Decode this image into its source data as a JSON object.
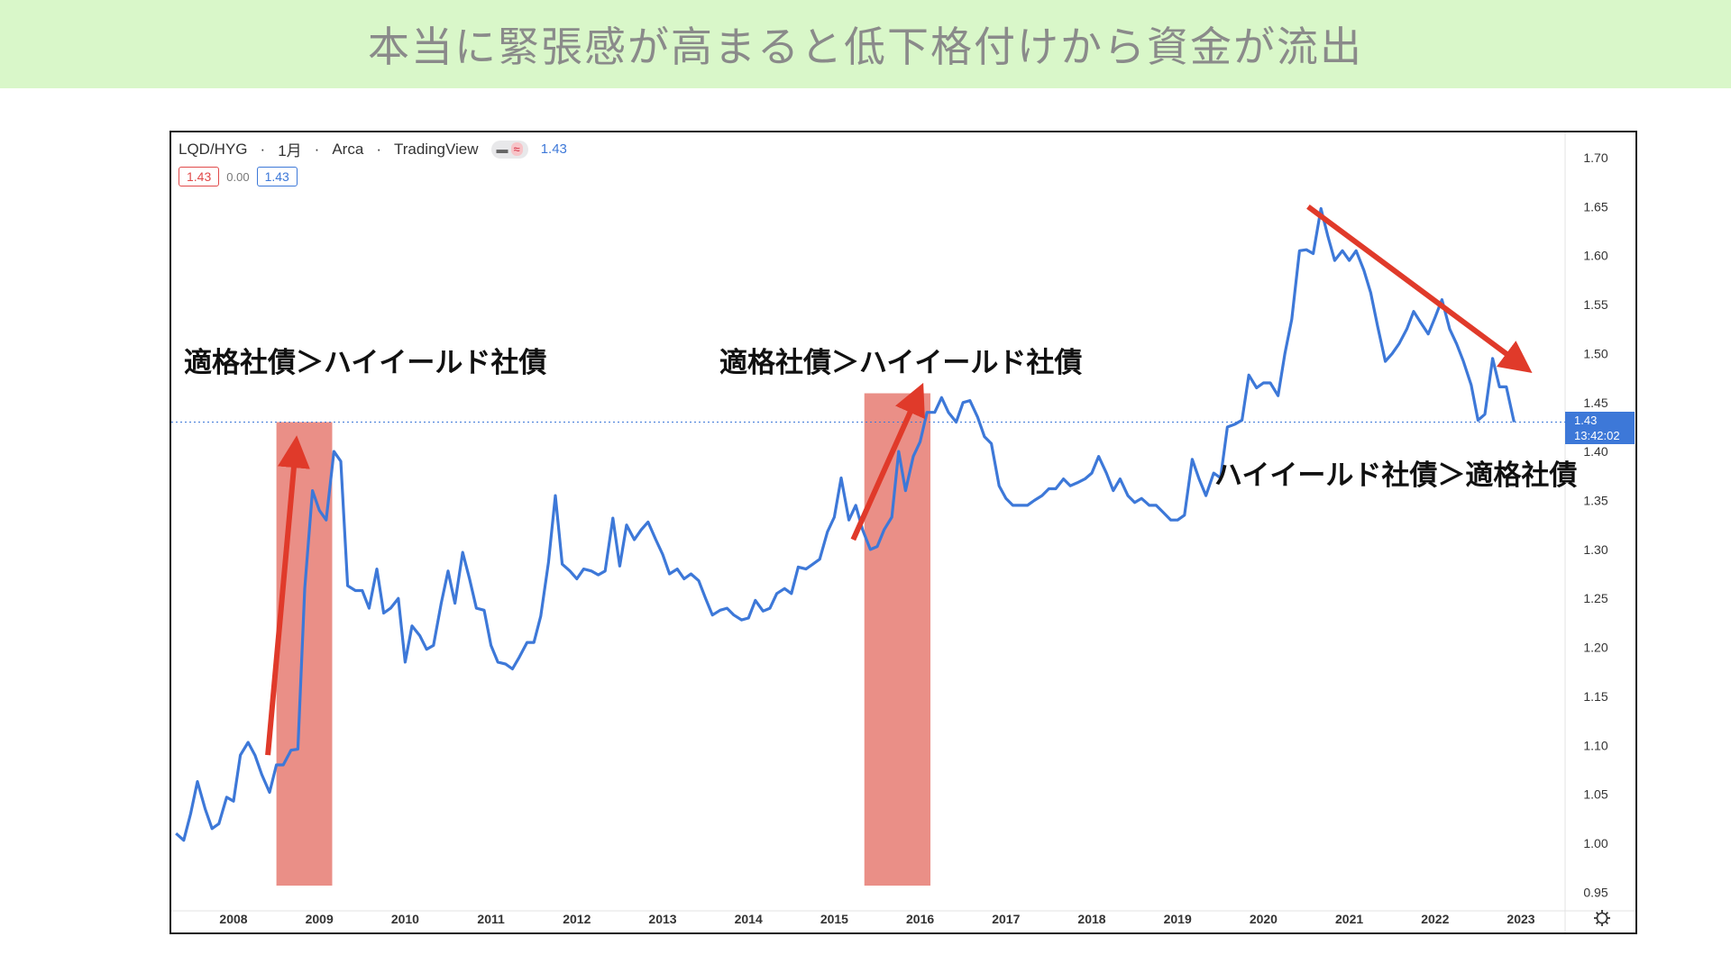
{
  "banner": {
    "title": "本当に緊張感が高まると低下格付けから資金が流出"
  },
  "header": {
    "symbol": "LQD/HYG",
    "sep1": "·",
    "interval": "1月",
    "sep2": "·",
    "exchange": "Arca",
    "sep3": "·",
    "source": "TradingView",
    "toggle_left": "▬",
    "toggle_right": "≈",
    "price": "1.43",
    "open_value": "1.43",
    "change": "0.00",
    "close_value": "1.43"
  },
  "price_tag": {
    "value": "1.43",
    "time": "13:42:02"
  },
  "annotations": {
    "left": "適格社債＞ハイイールド社債",
    "middle": "適格社債＞ハイイールド社債",
    "right": "ハイイールド社債＞適格社債"
  },
  "colors": {
    "line": "#3d78d8",
    "arrow": "#e03a2a",
    "shade": "#e8837a",
    "banner_bg": "#d9f7c9",
    "price_tag_bg": "#3d78d8"
  },
  "chart_data": {
    "type": "line",
    "yticks": [
      "0.95",
      "1.00",
      "1.05",
      "1.10",
      "1.15",
      "1.20",
      "1.25",
      "1.30",
      "1.35",
      "1.40",
      "1.45",
      "1.50",
      "1.55",
      "1.60",
      "1.65",
      "1.70"
    ],
    "xticks": [
      "2008",
      "2009",
      "2010",
      "2011",
      "2012",
      "2013",
      "2014",
      "2015",
      "2016",
      "2017",
      "2018",
      "2019",
      "2020",
      "2021",
      "2022",
      "2023"
    ],
    "ylim": [
      0.95,
      1.7
    ],
    "xlim": [
      2007.3,
      2023.6
    ],
    "last_value": 1.43,
    "shaded_ranges": [
      [
        2008.5,
        2009.15
      ],
      [
        2015.35,
        2016.12
      ]
    ],
    "arrows": [
      {
        "from": [
          2008.4,
          1.09
        ],
        "to": [
          2008.72,
          1.4
        ]
      },
      {
        "from": [
          2015.22,
          1.31
        ],
        "to": [
          2015.96,
          1.455
        ]
      },
      {
        "from": [
          2020.52,
          1.65
        ],
        "to": [
          2022.98,
          1.49
        ]
      }
    ],
    "series": [
      {
        "values": [
          [
            2007.33,
            1.01
          ],
          [
            2007.42,
            1.003
          ],
          [
            2007.5,
            1.03
          ],
          [
            2007.58,
            1.063
          ],
          [
            2007.67,
            1.035
          ],
          [
            2007.75,
            1.015
          ],
          [
            2007.83,
            1.02
          ],
          [
            2007.92,
            1.047
          ],
          [
            2008.0,
            1.043
          ],
          [
            2008.08,
            1.09
          ],
          [
            2008.17,
            1.103
          ],
          [
            2008.25,
            1.09
          ],
          [
            2008.33,
            1.07
          ],
          [
            2008.42,
            1.052
          ],
          [
            2008.5,
            1.08
          ],
          [
            2008.58,
            1.08
          ],
          [
            2008.67,
            1.095
          ],
          [
            2008.75,
            1.096
          ],
          [
            2008.83,
            1.26
          ],
          [
            2008.92,
            1.36
          ],
          [
            2009.0,
            1.34
          ],
          [
            2009.08,
            1.33
          ],
          [
            2009.17,
            1.4
          ],
          [
            2009.25,
            1.39
          ],
          [
            2009.33,
            1.263
          ],
          [
            2009.42,
            1.258
          ],
          [
            2009.5,
            1.258
          ],
          [
            2009.58,
            1.24
          ],
          [
            2009.67,
            1.28
          ],
          [
            2009.75,
            1.235
          ],
          [
            2009.83,
            1.24
          ],
          [
            2009.92,
            1.25
          ],
          [
            2010.0,
            1.185
          ],
          [
            2010.08,
            1.222
          ],
          [
            2010.17,
            1.212
          ],
          [
            2010.25,
            1.198
          ],
          [
            2010.33,
            1.202
          ],
          [
            2010.42,
            1.245
          ],
          [
            2010.5,
            1.278
          ],
          [
            2010.58,
            1.245
          ],
          [
            2010.67,
            1.297
          ],
          [
            2010.75,
            1.27
          ],
          [
            2010.83,
            1.24
          ],
          [
            2010.92,
            1.238
          ],
          [
            2011.0,
            1.202
          ],
          [
            2011.08,
            1.185
          ],
          [
            2011.17,
            1.183
          ],
          [
            2011.25,
            1.178
          ],
          [
            2011.33,
            1.19
          ],
          [
            2011.42,
            1.205
          ],
          [
            2011.5,
            1.205
          ],
          [
            2011.58,
            1.232
          ],
          [
            2011.67,
            1.287
          ],
          [
            2011.75,
            1.355
          ],
          [
            2011.83,
            1.285
          ],
          [
            2011.92,
            1.278
          ],
          [
            2012.0,
            1.27
          ],
          [
            2012.08,
            1.28
          ],
          [
            2012.17,
            1.278
          ],
          [
            2012.25,
            1.274
          ],
          [
            2012.33,
            1.278
          ],
          [
            2012.42,
            1.332
          ],
          [
            2012.5,
            1.283
          ],
          [
            2012.58,
            1.325
          ],
          [
            2012.67,
            1.31
          ],
          [
            2012.75,
            1.32
          ],
          [
            2012.83,
            1.328
          ],
          [
            2012.92,
            1.31
          ],
          [
            2013.0,
            1.295
          ],
          [
            2013.08,
            1.275
          ],
          [
            2013.17,
            1.28
          ],
          [
            2013.25,
            1.27
          ],
          [
            2013.33,
            1.275
          ],
          [
            2013.42,
            1.268
          ],
          [
            2013.5,
            1.25
          ],
          [
            2013.58,
            1.233
          ],
          [
            2013.67,
            1.238
          ],
          [
            2013.75,
            1.24
          ],
          [
            2013.83,
            1.233
          ],
          [
            2013.92,
            1.228
          ],
          [
            2014.0,
            1.23
          ],
          [
            2014.08,
            1.248
          ],
          [
            2014.17,
            1.237
          ],
          [
            2014.25,
            1.24
          ],
          [
            2014.33,
            1.255
          ],
          [
            2014.42,
            1.26
          ],
          [
            2014.5,
            1.255
          ],
          [
            2014.58,
            1.282
          ],
          [
            2014.67,
            1.28
          ],
          [
            2014.75,
            1.285
          ],
          [
            2014.83,
            1.29
          ],
          [
            2014.92,
            1.318
          ],
          [
            2015.0,
            1.333
          ],
          [
            2015.08,
            1.373
          ],
          [
            2015.17,
            1.33
          ],
          [
            2015.25,
            1.345
          ],
          [
            2015.33,
            1.32
          ],
          [
            2015.42,
            1.3
          ],
          [
            2015.5,
            1.303
          ],
          [
            2015.58,
            1.32
          ],
          [
            2015.67,
            1.333
          ],
          [
            2015.75,
            1.4
          ],
          [
            2015.83,
            1.36
          ],
          [
            2015.92,
            1.395
          ],
          [
            2016.0,
            1.41
          ],
          [
            2016.08,
            1.44
          ],
          [
            2016.17,
            1.44
          ],
          [
            2016.25,
            1.455
          ],
          [
            2016.33,
            1.44
          ],
          [
            2016.42,
            1.43
          ],
          [
            2016.5,
            1.45
          ],
          [
            2016.58,
            1.452
          ],
          [
            2016.67,
            1.435
          ],
          [
            2016.75,
            1.415
          ],
          [
            2016.83,
            1.408
          ],
          [
            2016.92,
            1.365
          ],
          [
            2017.0,
            1.352
          ],
          [
            2017.08,
            1.345
          ],
          [
            2017.17,
            1.345
          ],
          [
            2017.25,
            1.345
          ],
          [
            2017.33,
            1.35
          ],
          [
            2017.42,
            1.355
          ],
          [
            2017.5,
            1.362
          ],
          [
            2017.58,
            1.362
          ],
          [
            2017.67,
            1.372
          ],
          [
            2017.75,
            1.365
          ],
          [
            2017.83,
            1.368
          ],
          [
            2017.92,
            1.372
          ],
          [
            2018.0,
            1.378
          ],
          [
            2018.08,
            1.395
          ],
          [
            2018.17,
            1.378
          ],
          [
            2018.25,
            1.36
          ],
          [
            2018.33,
            1.372
          ],
          [
            2018.42,
            1.355
          ],
          [
            2018.5,
            1.348
          ],
          [
            2018.58,
            1.352
          ],
          [
            2018.67,
            1.345
          ],
          [
            2018.75,
            1.345
          ],
          [
            2018.83,
            1.338
          ],
          [
            2018.92,
            1.33
          ],
          [
            2019.0,
            1.33
          ],
          [
            2019.08,
            1.335
          ],
          [
            2019.17,
            1.392
          ],
          [
            2019.25,
            1.372
          ],
          [
            2019.33,
            1.355
          ],
          [
            2019.42,
            1.378
          ],
          [
            2019.5,
            1.373
          ],
          [
            2019.58,
            1.425
          ],
          [
            2019.67,
            1.428
          ],
          [
            2019.75,
            1.432
          ],
          [
            2019.83,
            1.478
          ],
          [
            2019.92,
            1.465
          ],
          [
            2020.0,
            1.47
          ],
          [
            2020.08,
            1.47
          ],
          [
            2020.17,
            1.457
          ],
          [
            2020.25,
            1.5
          ],
          [
            2020.33,
            1.535
          ],
          [
            2020.42,
            1.605
          ],
          [
            2020.5,
            1.606
          ],
          [
            2020.58,
            1.602
          ],
          [
            2020.67,
            1.648
          ],
          [
            2020.75,
            1.62
          ],
          [
            2020.83,
            1.595
          ],
          [
            2020.92,
            1.605
          ],
          [
            2021.0,
            1.595
          ],
          [
            2021.08,
            1.605
          ],
          [
            2021.17,
            1.585
          ],
          [
            2021.25,
            1.562
          ],
          [
            2021.33,
            1.528
          ],
          [
            2021.42,
            1.492
          ],
          [
            2021.5,
            1.5
          ],
          [
            2021.58,
            1.51
          ],
          [
            2021.67,
            1.525
          ],
          [
            2021.75,
            1.543
          ],
          [
            2021.83,
            1.532
          ],
          [
            2021.92,
            1.52
          ],
          [
            2022.0,
            1.537
          ],
          [
            2022.08,
            1.555
          ],
          [
            2022.17,
            1.525
          ],
          [
            2022.25,
            1.51
          ],
          [
            2022.33,
            1.492
          ],
          [
            2022.42,
            1.468
          ],
          [
            2022.5,
            1.432
          ],
          [
            2022.58,
            1.438
          ],
          [
            2022.67,
            1.495
          ],
          [
            2022.75,
            1.466
          ],
          [
            2022.83,
            1.466
          ],
          [
            2022.92,
            1.43
          ]
        ]
      }
    ]
  }
}
